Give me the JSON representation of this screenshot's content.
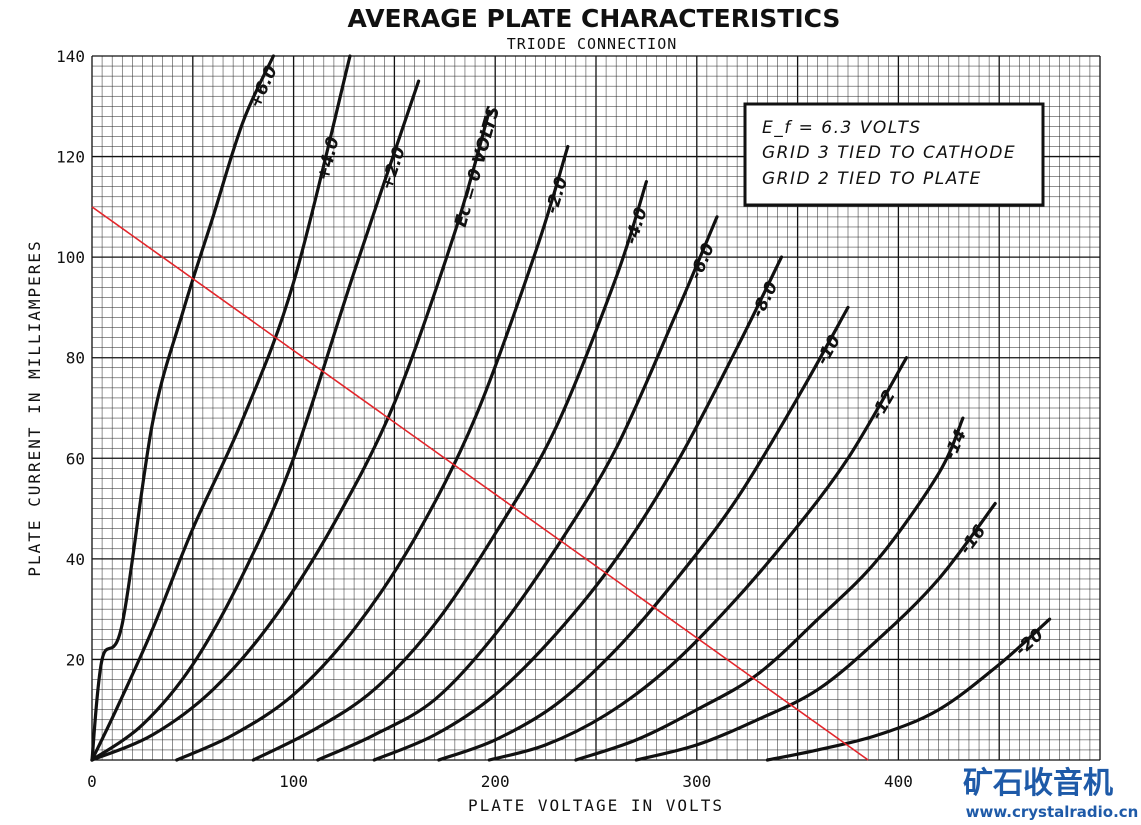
{
  "chart_data": {
    "type": "line",
    "title": "AVERAGE PLATE CHARACTERISTICS",
    "subtitle": "TRIODE CONNECTION",
    "xlabel": "PLATE VOLTAGE IN VOLTS",
    "ylabel": "PLATE CURRENT IN MILLIAMPERES",
    "xlim": [
      0,
      500
    ],
    "ylim": [
      0,
      140
    ],
    "x_ticks": [
      "0",
      "100",
      "200",
      "300",
      "400"
    ],
    "x_tick_values": [
      0,
      100,
      200,
      300,
      400
    ],
    "y_ticks": [
      "20",
      "40",
      "60",
      "80",
      "100",
      "120",
      "140"
    ],
    "y_tick_values": [
      20,
      40,
      60,
      80,
      100,
      120,
      140
    ],
    "grid": true,
    "series": [
      {
        "name": "+6.0",
        "label": "+6.0",
        "x": [
          0,
          5,
          15,
          30,
          45,
          60,
          75,
          90
        ],
        "y": [
          0,
          20,
          27,
          67,
          89,
          108,
          127,
          140
        ]
      },
      {
        "name": "+4.0",
        "label": "+4.0",
        "x": [
          0,
          12,
          30,
          50,
          75,
          100,
          128
        ],
        "y": [
          0,
          10,
          26,
          46,
          68,
          95,
          140
        ]
      },
      {
        "name": "+2.0",
        "label": "+2.0",
        "x": [
          0,
          25,
          50,
          75,
          100,
          130,
          162
        ],
        "y": [
          0,
          7,
          19,
          37,
          60,
          97,
          135
        ]
      },
      {
        "name": "0",
        "label": "Ec = 0 VOLTS",
        "x": [
          0,
          30,
          60,
          90,
          120,
          150,
          180,
          197
        ],
        "y": [
          0,
          5,
          14,
          28,
          47,
          71,
          105,
          129
        ]
      },
      {
        "name": "-2.0",
        "label": "-2.0",
        "x": [
          42,
          70,
          100,
          130,
          160,
          190,
          220,
          236
        ],
        "y": [
          0,
          5,
          13,
          26,
          44,
          68,
          101,
          122
        ]
      },
      {
        "name": "-4.0",
        "label": "-4.0",
        "x": [
          80,
          110,
          140,
          170,
          200,
          230,
          260,
          275
        ],
        "y": [
          0,
          6,
          14,
          27,
          45,
          66,
          96,
          115
        ]
      },
      {
        "name": "-6.0",
        "label": "-6.0",
        "x": [
          112,
          140,
          170,
          200,
          230,
          260,
          290,
          310
        ],
        "y": [
          0,
          5,
          12,
          25,
          42,
          62,
          89,
          108
        ]
      },
      {
        "name": "-8.0",
        "label": "-8.0",
        "x": [
          140,
          170,
          200,
          230,
          260,
          290,
          320,
          342
        ],
        "y": [
          0,
          5,
          13,
          25,
          40,
          59,
          82,
          100
        ]
      },
      {
        "name": "-10",
        "label": "-10",
        "x": [
          172,
          200,
          230,
          260,
          290,
          320,
          350,
          375
        ],
        "y": [
          0,
          4,
          11,
          22,
          36,
          52,
          72,
          90
        ]
      },
      {
        "name": "-12",
        "label": "-12",
        "x": [
          197,
          225,
          255,
          285,
          315,
          345,
          375,
          404
        ],
        "y": [
          0,
          3,
          9,
          18,
          30,
          44,
          60,
          80
        ]
      },
      {
        "name": "-14",
        "label": "-14",
        "x": [
          240,
          270,
          300,
          330,
          360,
          390,
          420,
          432
        ],
        "y": [
          0,
          4,
          10,
          17,
          28,
          40,
          57,
          68
        ]
      },
      {
        "name": "-16",
        "label": "-16",
        "x": [
          270,
          300,
          330,
          360,
          390,
          420,
          448
        ],
        "y": [
          0,
          3,
          8,
          14,
          24,
          36,
          51
        ]
      },
      {
        "name": "-20",
        "label": "-20",
        "x": [
          335,
          360,
          390,
          420,
          450,
          475
        ],
        "y": [
          0,
          2,
          5,
          10,
          19,
          28
        ]
      }
    ],
    "load_line": {
      "color": "#e3262b",
      "x": [
        0,
        385
      ],
      "y": [
        110,
        0
      ]
    },
    "annotation_lines": [
      "E_f = 6.3 VOLTS",
      "GRID 3 TIED TO CATHODE",
      "GRID 2 TIED TO PLATE"
    ]
  },
  "watermark": {
    "text_cn": "矿石收音机",
    "url": "www.crystalradio.cn",
    "color": "#1e5aa8"
  }
}
